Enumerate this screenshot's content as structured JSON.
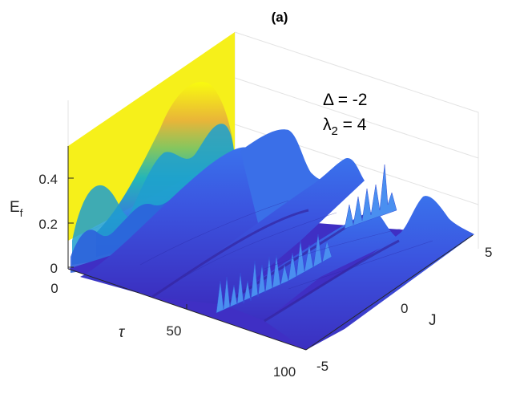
{
  "chart_data": {
    "type": "surface",
    "title": "(a)",
    "xlabel": "τ",
    "ylabel": "J",
    "zlabel": "E",
    "zlabel_sub": "f",
    "x_ticks": [
      "0",
      "50",
      "100"
    ],
    "y_ticks": [
      "-5",
      "0",
      "5"
    ],
    "z_ticks": [
      "0",
      "0.2",
      "0.4"
    ],
    "xlim": [
      0,
      100
    ],
    "ylim": [
      -5,
      5
    ],
    "zlim": [
      0,
      0.55
    ],
    "grid": true,
    "colormap": [
      "#3e26a8",
      "#2f5fd9",
      "#1e8fd6",
      "#12b4b4",
      "#54c46b",
      "#c4b93a",
      "#f9d72a",
      "#f9fb0e"
    ],
    "annotation_line1": "Δ = -2",
    "annotation_line2_prefix": "λ",
    "annotation_line2_sub": "2",
    "annotation_line2_suffix": " = 4",
    "ridges": [
      {
        "J": -2.6,
        "peak_Ef": 0.22
      },
      {
        "J": -0.3,
        "peak_Ef": 0.22
      },
      {
        "J": 2.0,
        "peak_Ef": 0.22
      },
      {
        "J": 4.3,
        "peak_Ef": 0.22
      }
    ],
    "back_wall_J": 5,
    "back_wall_peak_Ef": 0.55
  }
}
